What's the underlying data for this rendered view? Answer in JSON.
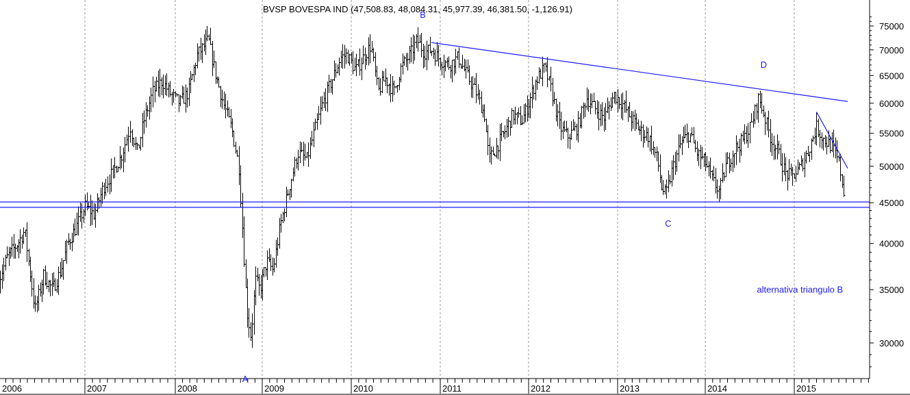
{
  "chart_data": {
    "type": "ohlc",
    "title": "BVSP BOVESPA IND (47,508.83, 48,084.31, 45,977.39, 46,381.50, -1,126.91)",
    "y_scale": "log",
    "ylim": [
      26000,
      78000
    ],
    "xlim": [
      2006.0,
      2016.0
    ],
    "y_ticks": [
      {
        "value": 30000,
        "label": "30000"
      },
      {
        "value": 35000,
        "label": "35000"
      },
      {
        "value": 40000,
        "label": "40000"
      },
      {
        "value": 45000,
        "label": "45000"
      },
      {
        "value": 50000,
        "label": "50000"
      },
      {
        "value": 55000,
        "label": "55000"
      },
      {
        "value": 60000,
        "label": "60000"
      },
      {
        "value": 65000,
        "label": "65000"
      },
      {
        "value": 70000,
        "label": "70000"
      },
      {
        "value": 75000,
        "label": "75000"
      }
    ],
    "x_ticks": [
      {
        "value": 2006,
        "label": "2006"
      },
      {
        "value": 2007,
        "label": "2007"
      },
      {
        "value": 2008,
        "label": "2008"
      },
      {
        "value": 2009,
        "label": "2009"
      },
      {
        "value": 2010,
        "label": "2010"
      },
      {
        "value": 2011,
        "label": "2011"
      },
      {
        "value": 2012,
        "label": "2012"
      },
      {
        "value": 2013,
        "label": "2013"
      },
      {
        "value": 2014,
        "label": "2014"
      },
      {
        "value": 2015,
        "label": "2015"
      }
    ],
    "price_path": [
      [
        2006.0,
        36000
      ],
      [
        2006.1,
        38500
      ],
      [
        2006.22,
        40000
      ],
      [
        2006.3,
        41500
      ],
      [
        2006.42,
        33000
      ],
      [
        2006.52,
        36500
      ],
      [
        2006.62,
        35000
      ],
      [
        2006.72,
        37000
      ],
      [
        2006.8,
        40000
      ],
      [
        2006.9,
        42000
      ],
      [
        2007.0,
        44500
      ],
      [
        2007.1,
        43500
      ],
      [
        2007.2,
        47000
      ],
      [
        2007.3,
        49000
      ],
      [
        2007.4,
        51500
      ],
      [
        2007.5,
        56000
      ],
      [
        2007.58,
        52000
      ],
      [
        2007.65,
        57000
      ],
      [
        2007.75,
        62000
      ],
      [
        2007.85,
        64000
      ],
      [
        2007.95,
        61500
      ],
      [
        2008.05,
        60000
      ],
      [
        2008.15,
        62000
      ],
      [
        2008.25,
        69000
      ],
      [
        2008.38,
        72000
      ],
      [
        2008.45,
        66000
      ],
      [
        2008.55,
        60000
      ],
      [
        2008.65,
        55500
      ],
      [
        2008.73,
        50000
      ],
      [
        2008.78,
        40000
      ],
      [
        2008.82,
        33000
      ],
      [
        2008.87,
        30500
      ],
      [
        2008.92,
        36000
      ],
      [
        2008.97,
        35000
      ],
      [
        2009.05,
        38000
      ],
      [
        2009.12,
        37000
      ],
      [
        2009.2,
        42000
      ],
      [
        2009.3,
        47000
      ],
      [
        2009.4,
        52000
      ],
      [
        2009.5,
        51000
      ],
      [
        2009.58,
        55000
      ],
      [
        2009.68,
        60000
      ],
      [
        2009.78,
        64000
      ],
      [
        2009.88,
        68500
      ],
      [
        2009.95,
        69000
      ],
      [
        2010.05,
        66000
      ],
      [
        2010.12,
        68000
      ],
      [
        2010.22,
        71000
      ],
      [
        2010.3,
        62000
      ],
      [
        2010.38,
        64500
      ],
      [
        2010.48,
        62000
      ],
      [
        2010.56,
        66500
      ],
      [
        2010.66,
        69000
      ],
      [
        2010.74,
        72000
      ],
      [
        2010.82,
        69500
      ],
      [
        2010.9,
        70000
      ],
      [
        2011.0,
        68000
      ],
      [
        2011.1,
        67000
      ],
      [
        2011.2,
        68500
      ],
      [
        2011.3,
        65000
      ],
      [
        2011.4,
        62000
      ],
      [
        2011.5,
        58000
      ],
      [
        2011.55,
        51000
      ],
      [
        2011.62,
        52500
      ],
      [
        2011.72,
        55000
      ],
      [
        2011.82,
        58000
      ],
      [
        2011.92,
        57000
      ],
      [
        2012.0,
        60000
      ],
      [
        2012.08,
        64000
      ],
      [
        2012.18,
        66500
      ],
      [
        2012.26,
        62000
      ],
      [
        2012.35,
        56000
      ],
      [
        2012.44,
        54500
      ],
      [
        2012.55,
        56000
      ],
      [
        2012.65,
        61000
      ],
      [
        2012.75,
        59000
      ],
      [
        2012.85,
        57500
      ],
      [
        2012.96,
        61500
      ],
      [
        2013.05,
        60000
      ],
      [
        2013.15,
        57500
      ],
      [
        2013.25,
        55500
      ],
      [
        2013.35,
        54500
      ],
      [
        2013.45,
        51000
      ],
      [
        2013.5,
        47000
      ],
      [
        2013.55,
        46000
      ],
      [
        2013.62,
        49500
      ],
      [
        2013.72,
        53500
      ],
      [
        2013.82,
        55000
      ],
      [
        2013.9,
        52000
      ],
      [
        2014.0,
        50500
      ],
      [
        2014.08,
        48000
      ],
      [
        2014.16,
        46500
      ],
      [
        2014.23,
        50000
      ],
      [
        2014.33,
        52500
      ],
      [
        2014.43,
        54000
      ],
      [
        2014.52,
        56500
      ],
      [
        2014.6,
        61000
      ],
      [
        2014.66,
        58000
      ],
      [
        2014.74,
        54000
      ],
      [
        2014.82,
        52000
      ],
      [
        2014.9,
        49000
      ],
      [
        2014.97,
        48500
      ],
      [
        2015.05,
        49500
      ],
      [
        2015.15,
        52000
      ],
      [
        2015.25,
        56000
      ],
      [
        2015.33,
        54000
      ],
      [
        2015.42,
        53000
      ],
      [
        2015.5,
        50500
      ],
      [
        2015.56,
        46400
      ]
    ],
    "lines": [
      {
        "name": "resistance",
        "color": "#1a1aff",
        "from": [
          2010.9,
          71500
        ],
        "to": [
          2015.6,
          60300
        ]
      },
      {
        "name": "support-upper",
        "color": "#1a1aff",
        "horizontal": 45100
      },
      {
        "name": "support-lower",
        "color": "#1a1aff",
        "horizontal": 44400
      },
      {
        "name": "short-down",
        "color": "#1a1aff",
        "from": [
          2015.25,
          58500
        ],
        "to": [
          2015.6,
          49700
        ]
      }
    ],
    "annotations": [
      {
        "text": "A",
        "x": 2008.77,
        "y": 26800
      },
      {
        "text": "B",
        "x": 2010.77,
        "y": 76800
      },
      {
        "text": "C",
        "x": 2013.54,
        "y": 42000
      },
      {
        "text": "D",
        "x": 2014.62,
        "y": 66500
      },
      {
        "text": "alternativa triangulo  B",
        "x": 2014.58,
        "y": 34700
      }
    ],
    "colors": {
      "bars": "#000000",
      "grid": "#9a9a9a",
      "annotation": "#1a1aff",
      "axis": "#000000"
    }
  }
}
